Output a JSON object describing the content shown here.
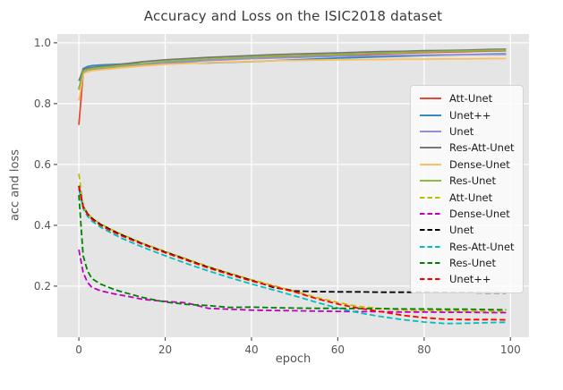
{
  "chart_data": {
    "type": "line",
    "title": "Accuracy and Loss on the ISIC2018 dataset",
    "xlabel": "epoch",
    "ylabel": "acc and loss",
    "xlim": [
      -5,
      104.3
    ],
    "ylim": [
      0.032,
      1.029
    ],
    "xticks": [
      0,
      20,
      40,
      60,
      80,
      100
    ],
    "xtick_labels": [
      "0",
      "20",
      "40",
      "60",
      "80",
      "100"
    ],
    "yticks": [
      0.2,
      0.4,
      0.6,
      0.8,
      1.0
    ],
    "ytick_labels": [
      "0.2",
      "0.4",
      "0.6",
      "0.8",
      "1.0"
    ],
    "grid": true,
    "plot_background": "#E5E5E5",
    "grid_color": "#FFFFFF",
    "tick_color": "#555555",
    "legend_position": "center right",
    "x": [
      0,
      1,
      2,
      3,
      5,
      8,
      10,
      15,
      20,
      25,
      30,
      35,
      40,
      45,
      50,
      55,
      60,
      65,
      70,
      75,
      80,
      85,
      90,
      95,
      99
    ],
    "series": [
      {
        "name": "Att-Unet",
        "metric": "accuracy",
        "color": "#E24A33",
        "dashed": false,
        "values": [
          0.73,
          0.9,
          0.91,
          0.913,
          0.916,
          0.92,
          0.923,
          0.93,
          0.936,
          0.941,
          0.945,
          0.948,
          0.951,
          0.954,
          0.956,
          0.958,
          0.96,
          0.962,
          0.964,
          0.966,
          0.968,
          0.97,
          0.971,
          0.973,
          0.974
        ]
      },
      {
        "name": "Unet++",
        "metric": "accuracy",
        "color": "#348ABD",
        "dashed": false,
        "values": [
          0.848,
          0.915,
          0.922,
          0.925,
          0.927,
          0.929,
          0.93,
          0.931,
          0.932,
          0.933,
          0.934,
          0.936,
          0.938,
          0.941,
          0.944,
          0.947,
          0.95,
          0.952,
          0.954,
          0.956,
          0.958,
          0.96,
          0.961,
          0.963,
          0.964
        ]
      },
      {
        "name": "Unet",
        "metric": "accuracy",
        "color": "#988ED5",
        "dashed": false,
        "values": [
          0.85,
          0.902,
          0.908,
          0.911,
          0.914,
          0.918,
          0.921,
          0.928,
          0.934,
          0.938,
          0.942,
          0.945,
          0.948,
          0.95,
          0.952,
          0.954,
          0.956,
          0.957,
          0.958,
          0.959,
          0.96,
          0.961,
          0.961,
          0.962,
          0.962
        ]
      },
      {
        "name": "Res-Att-Unet",
        "metric": "accuracy",
        "color": "#777777",
        "dashed": false,
        "values": [
          0.875,
          0.912,
          0.917,
          0.919,
          0.922,
          0.927,
          0.93,
          0.938,
          0.944,
          0.948,
          0.952,
          0.955,
          0.958,
          0.961,
          0.963,
          0.965,
          0.967,
          0.969,
          0.971,
          0.972,
          0.974,
          0.975,
          0.976,
          0.978,
          0.979
        ]
      },
      {
        "name": "Dense-Unet",
        "metric": "accuracy",
        "color": "#FBC15E",
        "dashed": false,
        "values": [
          0.81,
          0.898,
          0.905,
          0.908,
          0.911,
          0.915,
          0.918,
          0.924,
          0.929,
          0.932,
          0.935,
          0.937,
          0.939,
          0.941,
          0.942,
          0.943,
          0.944,
          0.945,
          0.945,
          0.946,
          0.946,
          0.947,
          0.947,
          0.948,
          0.948
        ]
      },
      {
        "name": "Res-Unet",
        "metric": "accuracy",
        "color": "#8EBA42",
        "dashed": false,
        "values": [
          0.845,
          0.905,
          0.912,
          0.915,
          0.918,
          0.922,
          0.925,
          0.932,
          0.939,
          0.943,
          0.947,
          0.95,
          0.953,
          0.956,
          0.958,
          0.96,
          0.962,
          0.964,
          0.966,
          0.968,
          0.97,
          0.972,
          0.973,
          0.975,
          0.976
        ]
      },
      {
        "name": "Att-Unet",
        "metric": "loss",
        "color": "#BFBF00",
        "dashed": true,
        "values": [
          0.57,
          0.465,
          0.44,
          0.425,
          0.405,
          0.383,
          0.37,
          0.34,
          0.314,
          0.289,
          0.264,
          0.242,
          0.221,
          0.202,
          0.183,
          0.163,
          0.146,
          0.133,
          0.126,
          0.122,
          0.12,
          0.119,
          0.118,
          0.118,
          0.117
        ]
      },
      {
        "name": "Dense-Unet",
        "metric": "loss",
        "color": "#BF00BF",
        "dashed": true,
        "values": [
          0.32,
          0.245,
          0.212,
          0.196,
          0.185,
          0.175,
          0.17,
          0.156,
          0.15,
          0.145,
          0.127,
          0.124,
          0.121,
          0.12,
          0.119,
          0.118,
          0.117,
          0.116,
          0.116,
          0.115,
          0.115,
          0.114,
          0.114,
          0.113,
          0.113
        ]
      },
      {
        "name": "Unet",
        "metric": "loss",
        "color": "#000000",
        "dashed": true,
        "values": [
          0.53,
          0.462,
          0.438,
          0.423,
          0.403,
          0.381,
          0.368,
          0.338,
          0.312,
          0.287,
          0.262,
          0.24,
          0.219,
          0.196,
          0.184,
          0.182,
          0.181,
          0.181,
          0.18,
          0.18,
          0.18,
          0.179,
          0.179,
          0.178,
          0.178
        ]
      },
      {
        "name": "Res-Att-Unet",
        "metric": "loss",
        "color": "#00BFBF",
        "dashed": true,
        "values": [
          0.52,
          0.455,
          0.43,
          0.414,
          0.394,
          0.371,
          0.357,
          0.327,
          0.3,
          0.274,
          0.25,
          0.228,
          0.207,
          0.188,
          0.168,
          0.147,
          0.128,
          0.112,
          0.1,
          0.09,
          0.082,
          0.077,
          0.078,
          0.08,
          0.081
        ]
      },
      {
        "name": "Res-Unet",
        "metric": "loss",
        "color": "#008000",
        "dashed": true,
        "values": [
          0.5,
          0.3,
          0.25,
          0.225,
          0.207,
          0.19,
          0.181,
          0.162,
          0.148,
          0.14,
          0.136,
          0.13,
          0.131,
          0.129,
          0.128,
          0.127,
          0.127,
          0.126,
          0.126,
          0.125,
          0.125,
          0.124,
          0.124,
          0.123,
          0.122
        ]
      },
      {
        "name": "Unet++",
        "metric": "loss",
        "color": "#FF0000",
        "dashed": true,
        "values": [
          0.528,
          0.46,
          0.436,
          0.42,
          0.4,
          0.378,
          0.365,
          0.336,
          0.31,
          0.285,
          0.26,
          0.238,
          0.217,
          0.199,
          0.181,
          0.159,
          0.141,
          0.127,
          0.116,
          0.104,
          0.096,
          0.091,
          0.09,
          0.09,
          0.089
        ]
      }
    ]
  }
}
